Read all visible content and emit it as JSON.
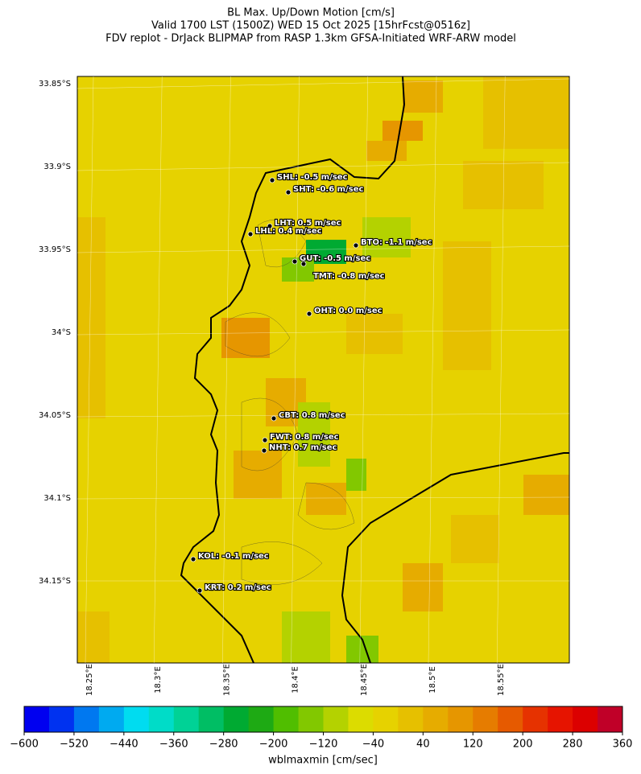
{
  "title": [
    "BL Max. Up/Down Motion [cm/s]",
    "Valid 1700 LST (1500Z) WED 15 Oct 2025 [15hrFcst@0516z]",
    "FDV replot - DrJack BLIPMAP from RASP 1.3km GFSA-Initiated WRF-ARW model"
  ],
  "map": {
    "lat_ticks": [
      "33.85°S",
      "33.9°S",
      "33.95°S",
      "34°S",
      "34.05°S",
      "34.1°S",
      "34.15°S"
    ],
    "lon_ticks": [
      "18.25°E",
      "18.3°E",
      "18.35°E",
      "18.4°E",
      "18.45°E",
      "18.5°E",
      "18.55°E"
    ]
  },
  "stations": [
    {
      "label": "SHL: -0.5 m/sec"
    },
    {
      "label": "SHT: -0.6 m/sec"
    },
    {
      "label": "LHT: 0.5 m/sec"
    },
    {
      "label": "LHL: 0.4 m/sec"
    },
    {
      "label": "BTO: -1.1 m/sec"
    },
    {
      "label": "GUT: -0.5 m/sec"
    },
    {
      "label": "TMT: -0.8 m/sec"
    },
    {
      "label": "OHT: 0.0 m/sec"
    },
    {
      "label": "CBT: 0.8 m/sec"
    },
    {
      "label": "FWT: 0.8 m/sec"
    },
    {
      "label": "NHT: 0.7 m/sec"
    },
    {
      "label": "KOL: -0.1 m/sec"
    },
    {
      "label": "KRT: 0.2 m/sec"
    }
  ],
  "colorbar": {
    "label": "wblmaxmin [cm/sec]",
    "lim": [
      -600,
      360
    ],
    "ticks": [
      {
        "value": -600,
        "label": "−600"
      },
      {
        "value": -520,
        "label": "−520"
      },
      {
        "value": -440,
        "label": "−440"
      },
      {
        "value": -360,
        "label": "−360"
      },
      {
        "value": -280,
        "label": "−280"
      },
      {
        "value": -200,
        "label": "−200"
      },
      {
        "value": -120,
        "label": "−120"
      },
      {
        "value": -40,
        "label": "−40"
      },
      40,
      120,
      200,
      280,
      360
    ],
    "colors": [
      "#0000f0",
      "#0032f0",
      "#0078f0",
      "#00aaf0",
      "#00dcf0",
      "#00dcc8",
      "#00d296",
      "#00be64",
      "#00aa32",
      "#1eaa14",
      "#50be00",
      "#82c800",
      "#b4d200",
      "#dcdc00",
      "#e6d200",
      "#e6c000",
      "#e6ac00",
      "#e69600",
      "#e67c00",
      "#e65a00",
      "#e63200",
      "#e61400",
      "#dc0000",
      "#c00028"
    ]
  }
}
